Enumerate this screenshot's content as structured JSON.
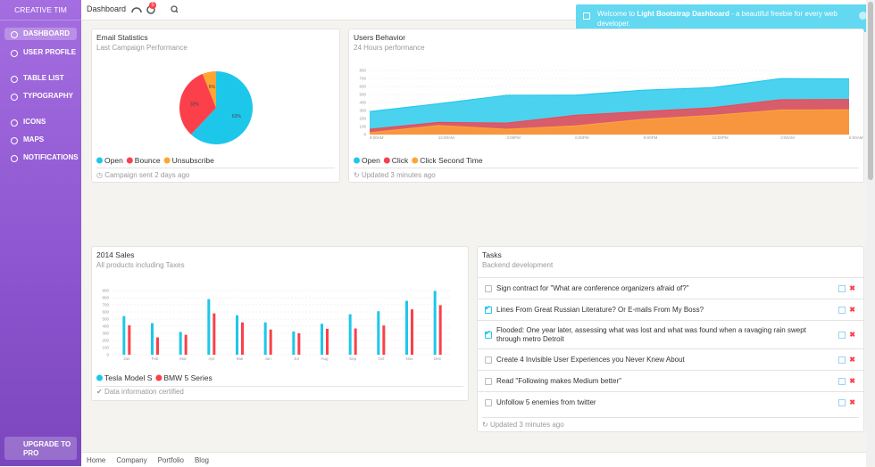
{
  "sidebar": {
    "brand": "CREATIVE TIM",
    "nav": [
      "DASHBOARD",
      "USER PROFILE",
      "TABLE LIST",
      "TYPOGRAPHY",
      "ICONS",
      "MAPS",
      "NOTIFICATIONS"
    ],
    "upgrade": "UPGRADE TO PRO"
  },
  "topbar": {
    "title": "Dashboard",
    "badge": "5"
  },
  "notification": {
    "prefix": "Welcome to ",
    "bold": "Light Bootstrap Dashboard",
    "suffix": " - a beautiful freebie for every web developer."
  },
  "email_statistics": {
    "title": "Email Statistics",
    "subtitle": "Last Campaign Performance",
    "chart": {
      "type": "pie",
      "values": [
        62,
        32,
        6
      ],
      "labels": [
        "62%",
        "32%",
        "6%"
      ],
      "colors": [
        "#1dc7ea",
        "#fb404b",
        "#ffa534"
      ],
      "legend": [
        "Open",
        "Bounce",
        "Unsubscribe"
      ]
    },
    "footer": "Campaign sent 2 days ago"
  },
  "users_behavior": {
    "title": "Users Behavior",
    "subtitle": "24 Hours performance",
    "chart": {
      "type": "area",
      "categories": [
        "9:00AM",
        "12:00AM",
        "3:00PM",
        "6:00PM",
        "9:00PM",
        "12:00PM",
        "3:00AM",
        "6:00AM"
      ],
      "series": [
        {
          "name": "Open",
          "color": "#1dc7ea",
          "values": [
            287,
            385,
            490,
            492,
            554,
            586,
            698,
            695
          ]
        },
        {
          "name": "Click",
          "color": "#fb404b",
          "values": [
            67,
            152,
            143,
            240,
            287,
            335,
            435,
            437
          ]
        },
        {
          "name": "Click Second Time",
          "color": "#ffa534",
          "values": [
            23,
            113,
            67,
            108,
            190,
            239,
            307,
            308
          ]
        }
      ],
      "ylim": [
        0,
        800
      ],
      "yticks": [
        0,
        100,
        200,
        300,
        400,
        500,
        600,
        700,
        800
      ]
    },
    "footer": "Updated 3 minutes ago"
  },
  "sales": {
    "title": "2014 Sales",
    "subtitle": "All products including Taxes",
    "chart": {
      "type": "bar",
      "categories": [
        "Jan",
        "Feb",
        "Mar",
        "Apr",
        "Mai",
        "Jun",
        "Jul",
        "Aug",
        "Sep",
        "Oct",
        "Nov",
        "Dec"
      ],
      "series": [
        {
          "name": "Tesla Model S",
          "color": "#1dc7ea",
          "values": [
            542,
            443,
            320,
            780,
            553,
            453,
            326,
            434,
            568,
            610,
            756,
            895
          ]
        },
        {
          "name": "BMW 5 Series",
          "color": "#fb404b",
          "values": [
            412,
            243,
            280,
            580,
            453,
            353,
            300,
            364,
            368,
            410,
            636,
            695
          ]
        }
      ],
      "ylim": [
        0,
        900
      ],
      "yticks": [
        0,
        100,
        200,
        300,
        400,
        500,
        600,
        700,
        800,
        900
      ]
    },
    "footer": "Data information certified"
  },
  "tasks": {
    "title": "Tasks",
    "subtitle": "Backend development",
    "items": [
      {
        "text": "Sign contract for \"What are conference organizers afraid of?\"",
        "checked": false
      },
      {
        "text": "Lines From Great Russian Literature? Or E-mails From My Boss?",
        "checked": true
      },
      {
        "text": "Flooded: One year later, assessing what was lost and what was found when a ravaging rain swept through metro Detroit",
        "checked": true
      },
      {
        "text": "Create 4 Invisible User Experiences you Never Knew About",
        "checked": false
      },
      {
        "text": "Read \"Following makes Medium better\"",
        "checked": false
      },
      {
        "text": "Unfollow 5 enemies from twitter",
        "checked": false
      }
    ],
    "footer": "Updated 3 minutes ago"
  },
  "footer": {
    "links": [
      "Home",
      "Company",
      "Portfolio",
      "Blog"
    ]
  }
}
